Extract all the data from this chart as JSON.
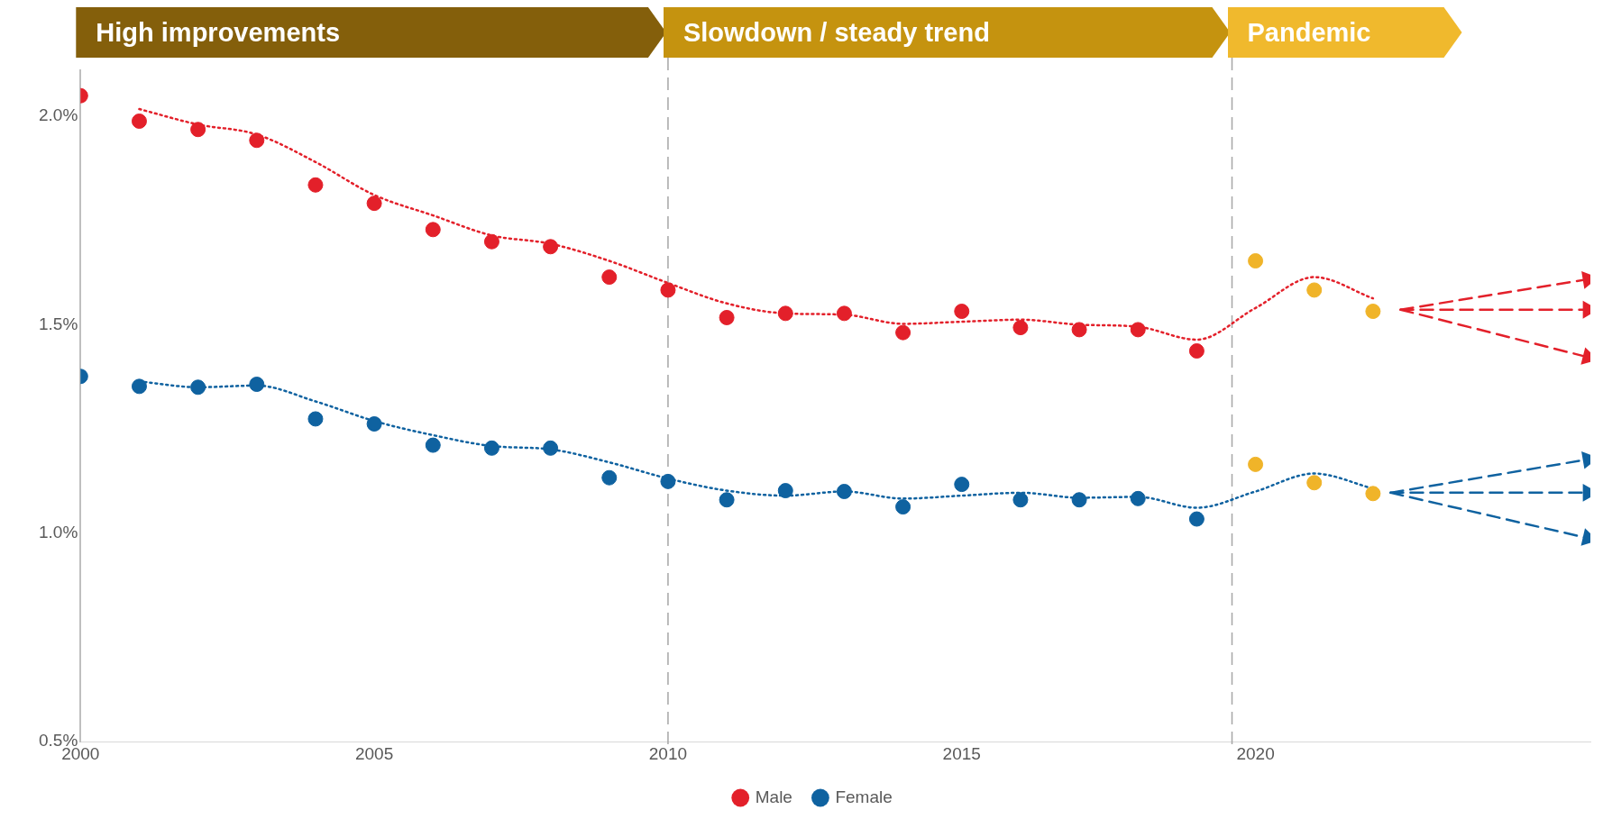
{
  "chart_data": {
    "type": "scatter",
    "series": [
      {
        "name": "Male",
        "color": "#e3202a",
        "marker": "circle",
        "x": [
          2000,
          2001,
          2002,
          2003,
          2004,
          2005,
          2006,
          2007,
          2008,
          2009,
          2010,
          2011,
          2012,
          2013,
          2014,
          2015,
          2016,
          2017,
          2018,
          2019,
          2020,
          2021,
          2022
        ],
        "values": [
          2.049,
          1.988,
          1.968,
          1.942,
          1.835,
          1.791,
          1.728,
          1.699,
          1.687,
          1.614,
          1.583,
          1.517,
          1.527,
          1.527,
          1.481,
          1.532,
          1.493,
          1.488,
          1.488,
          1.437,
          1.653,
          1.583,
          1.532
        ],
        "colors": [
          "#e3202a",
          "#e3202a",
          "#e3202a",
          "#e3202a",
          "#e3202a",
          "#e3202a",
          "#e3202a",
          "#e3202a",
          "#e3202a",
          "#e3202a",
          "#e3202a",
          "#e3202a",
          "#e3202a",
          "#e3202a",
          "#e3202a",
          "#e3202a",
          "#e3202a",
          "#e3202a",
          "#e3202a",
          "#e3202a",
          "#f0b429",
          "#f0b429",
          "#f0b429"
        ]
      },
      {
        "name": "Female",
        "color": "#0f62a0",
        "marker": "circle",
        "x": [
          2000,
          2001,
          2002,
          2003,
          2004,
          2005,
          2006,
          2007,
          2008,
          2009,
          2010,
          2011,
          2012,
          2013,
          2014,
          2015,
          2016,
          2017,
          2018,
          2019,
          2020,
          2021,
          2022
        ],
        "values": [
          1.376,
          1.352,
          1.35,
          1.357,
          1.274,
          1.262,
          1.211,
          1.204,
          1.204,
          1.133,
          1.124,
          1.08,
          1.102,
          1.1,
          1.063,
          1.117,
          1.08,
          1.08,
          1.083,
          1.034,
          1.165,
          1.121,
          1.095
        ],
        "colors": [
          "#0f62a0",
          "#0f62a0",
          "#0f62a0",
          "#0f62a0",
          "#0f62a0",
          "#0f62a0",
          "#0f62a0",
          "#0f62a0",
          "#0f62a0",
          "#0f62a0",
          "#0f62a0",
          "#0f62a0",
          "#0f62a0",
          "#0f62a0",
          "#0f62a0",
          "#0f62a0",
          "#0f62a0",
          "#0f62a0",
          "#0f62a0",
          "#0f62a0",
          "#f0b429",
          "#f0b429",
          "#f0b429"
        ]
      },
      {
        "type": "line",
        "color": "#e3202a",
        "line_style": "dotted",
        "marker": "none",
        "x": [
          2001,
          2002,
          2003,
          2004,
          2005,
          2006,
          2007,
          2008,
          2009,
          2010,
          2011,
          2012,
          2013,
          2014,
          2015,
          2016,
          2017,
          2018,
          2019,
          2020,
          2021,
          2022
        ],
        "values": [
          2.017,
          1.98,
          1.956,
          1.89,
          1.811,
          1.762,
          1.714,
          1.694,
          1.653,
          1.6,
          1.551,
          1.527,
          1.524,
          1.502,
          1.507,
          1.512,
          1.5,
          1.495,
          1.464,
          1.54,
          1.614,
          1.563
        ]
      },
      {
        "type": "line",
        "color": "#0f62a0",
        "line_style": "dotted",
        "marker": "none",
        "x": [
          2001,
          2002,
          2003,
          2004,
          2005,
          2006,
          2007,
          2008,
          2009,
          2010,
          2011,
          2012,
          2013,
          2014,
          2015,
          2016,
          2017,
          2018,
          2019,
          2020,
          2021,
          2022
        ],
        "values": [
          1.364,
          1.35,
          1.354,
          1.316,
          1.269,
          1.235,
          1.209,
          1.201,
          1.17,
          1.131,
          1.102,
          1.09,
          1.1,
          1.083,
          1.09,
          1.097,
          1.085,
          1.087,
          1.061,
          1.1,
          1.143,
          1.107
        ]
      },
      {
        "type": "line",
        "color": "#e3202a",
        "line_style": "dashed",
        "marker": "triangle",
        "x": [
          2022.47,
          2025.66
        ],
        "values": [
          1.536,
          1.609
        ]
      },
      {
        "type": "line",
        "color": "#e3202a",
        "line_style": "dashed",
        "marker": "triangle",
        "x": [
          2022.47,
          2025.66
        ],
        "values": [
          1.536,
          1.536
        ]
      },
      {
        "type": "line",
        "color": "#e3202a",
        "line_style": "dashed",
        "marker": "triangle",
        "x": [
          2022.47,
          2025.66
        ],
        "values": [
          1.536,
          1.422
        ]
      },
      {
        "type": "line",
        "color": "#0f62a0",
        "line_style": "dashed",
        "marker": "triangle",
        "x": [
          2022.3,
          2025.66
        ],
        "values": [
          1.097,
          1.177
        ]
      },
      {
        "type": "line",
        "color": "#0f62a0",
        "line_style": "dashed",
        "marker": "triangle",
        "x": [
          2022.3,
          2025.66
        ],
        "values": [
          1.097,
          1.097
        ]
      },
      {
        "type": "line",
        "color": "#0f62a0",
        "line_style": "dashed",
        "marker": "triangle",
        "x": [
          2022.3,
          2025.66
        ],
        "values": [
          1.097,
          0.988
        ]
      }
    ],
    "xlim": [
      2000,
      2025.7
    ],
    "xticks": [
      2000,
      2005,
      2010,
      2015,
      2020
    ],
    "ylim": [
      0.5,
      2.11
    ],
    "yticks": [
      {
        "value": 0.5,
        "label": "0.5%"
      },
      {
        "value": 1.0,
        "label": "1.0%"
      },
      {
        "value": 1.5,
        "label": "1.5%"
      },
      {
        "value": 2.0,
        "label": "2.0%"
      }
    ],
    "ref_lines": [
      {
        "axis": "x",
        "value": 2010,
        "color": "#a6a6a6",
        "line_style": "dashed"
      },
      {
        "axis": "x",
        "value": 2019.6,
        "color": "#a6a6a6",
        "line_style": "dashed"
      }
    ],
    "annotations": [
      "High improvements",
      "Slowdown / steady trend",
      "Pandemic"
    ],
    "grid": false,
    "legend": "bottom"
  }
}
